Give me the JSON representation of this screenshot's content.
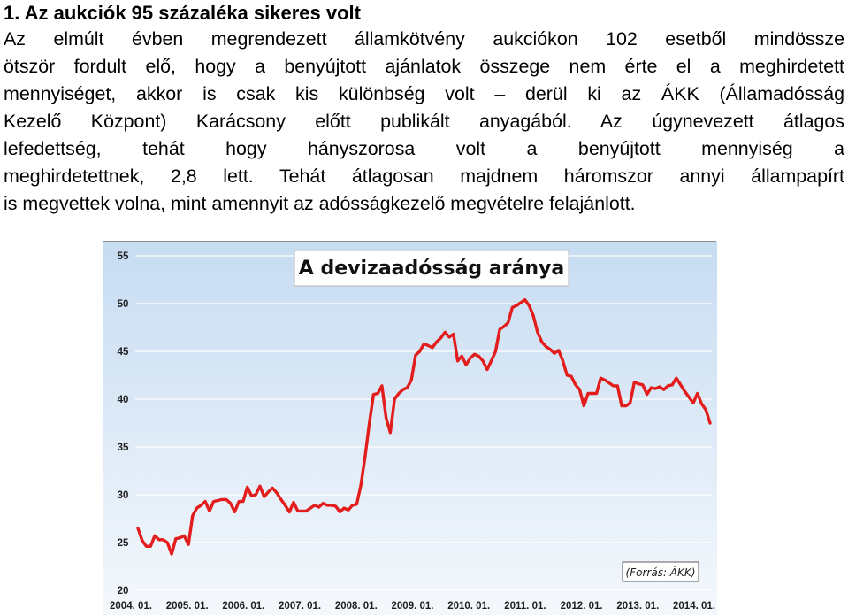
{
  "heading": "1. Az aukciók 95 százaléka sikeres volt",
  "paragraph_lines": [
    "Az elmúlt évben megrendezett államkötvény aukciókon 102 esetből mindössze",
    "ötször fordult elő, hogy a benyújtott ajánlatok összege nem érte el a meghirdetett",
    "mennyiséget, akkor is csak kis különbség volt – derül ki az ÁKK (Államadósság",
    "Kezelő Központ) Karácsony előtt publikált anyagából. Az úgynevezett átlagos",
    "lefedettség, tehát hogy hányszorosa volt a benyújtott mennyiség a",
    "meghirdetettnek, 2,8 lett. Tehát átlagosan majdnem háromszor annyi állampapírt",
    "is megvettek volna, mint amennyit az adósságkezelő megvételre felajánlott."
  ],
  "chart_data": {
    "type": "line",
    "title": "A devizaadósság aránya",
    "source_note": "(Forrás: ÁKK)",
    "ylim": [
      20,
      55
    ],
    "yticks": [
      "20",
      "25",
      "30",
      "35",
      "40",
      "45",
      "50",
      "55"
    ],
    "xticks": [
      "2004. 01.",
      "2005. 01.",
      "2006. 01.",
      "2007. 01.",
      "2008. 01.",
      "2009. 01.",
      "2010. 01.",
      "2011. 01.",
      "2012. 01.",
      "2013. 01.",
      "2014. 01."
    ],
    "grid": true,
    "series_color": "#e31c1c",
    "series": [
      {
        "x_start": "2004-01",
        "x_end": "2014-12",
        "values": [
          26.5,
          25.2,
          24.6,
          24.6,
          25.7,
          25.3,
          25.3,
          25.0,
          23.8,
          25.4,
          25.5,
          25.7,
          24.8,
          27.8,
          28.6,
          28.9,
          29.3,
          28.3,
          29.3,
          29.4,
          29.5,
          29.5,
          29.1,
          28.2,
          29.3,
          29.3,
          30.8,
          29.9,
          30.0,
          30.9,
          29.8,
          30.3,
          30.7,
          30.2,
          29.5,
          28.9,
          28.2,
          29.2,
          28.3,
          28.3,
          28.3,
          28.6,
          28.9,
          28.7,
          29.1,
          28.9,
          28.9,
          28.8,
          28.2,
          28.6,
          28.4,
          28.9,
          29.0,
          31.0,
          34.0,
          37.5,
          40.5,
          40.6,
          41.4,
          38.0,
          36.5,
          40.0,
          40.6,
          41.0,
          41.2,
          42.0,
          44.6,
          45.0,
          45.8,
          45.6,
          45.4,
          46.0,
          46.4,
          47.0,
          46.5,
          46.8,
          44.0,
          44.5,
          43.6,
          44.3,
          44.7,
          44.5,
          44.0,
          43.1,
          44.0,
          45.0,
          47.3,
          47.6,
          48.0,
          49.6,
          49.8,
          50.1,
          50.4,
          49.8,
          48.7,
          47.0,
          46.0,
          45.5,
          45.2,
          44.8,
          45.1,
          44.0,
          42.5,
          42.4,
          41.5,
          41.0,
          39.3,
          40.6,
          40.6,
          40.6,
          42.2,
          42.0,
          41.7,
          41.4,
          41.4,
          39.3,
          39.3,
          39.6,
          41.8,
          41.6,
          41.5,
          40.5,
          41.2,
          41.1,
          41.3,
          41.0,
          41.4,
          41.5,
          42.2,
          41.5,
          40.8,
          40.2,
          39.6,
          40.6,
          39.5,
          38.9,
          37.5
        ]
      }
    ]
  }
}
